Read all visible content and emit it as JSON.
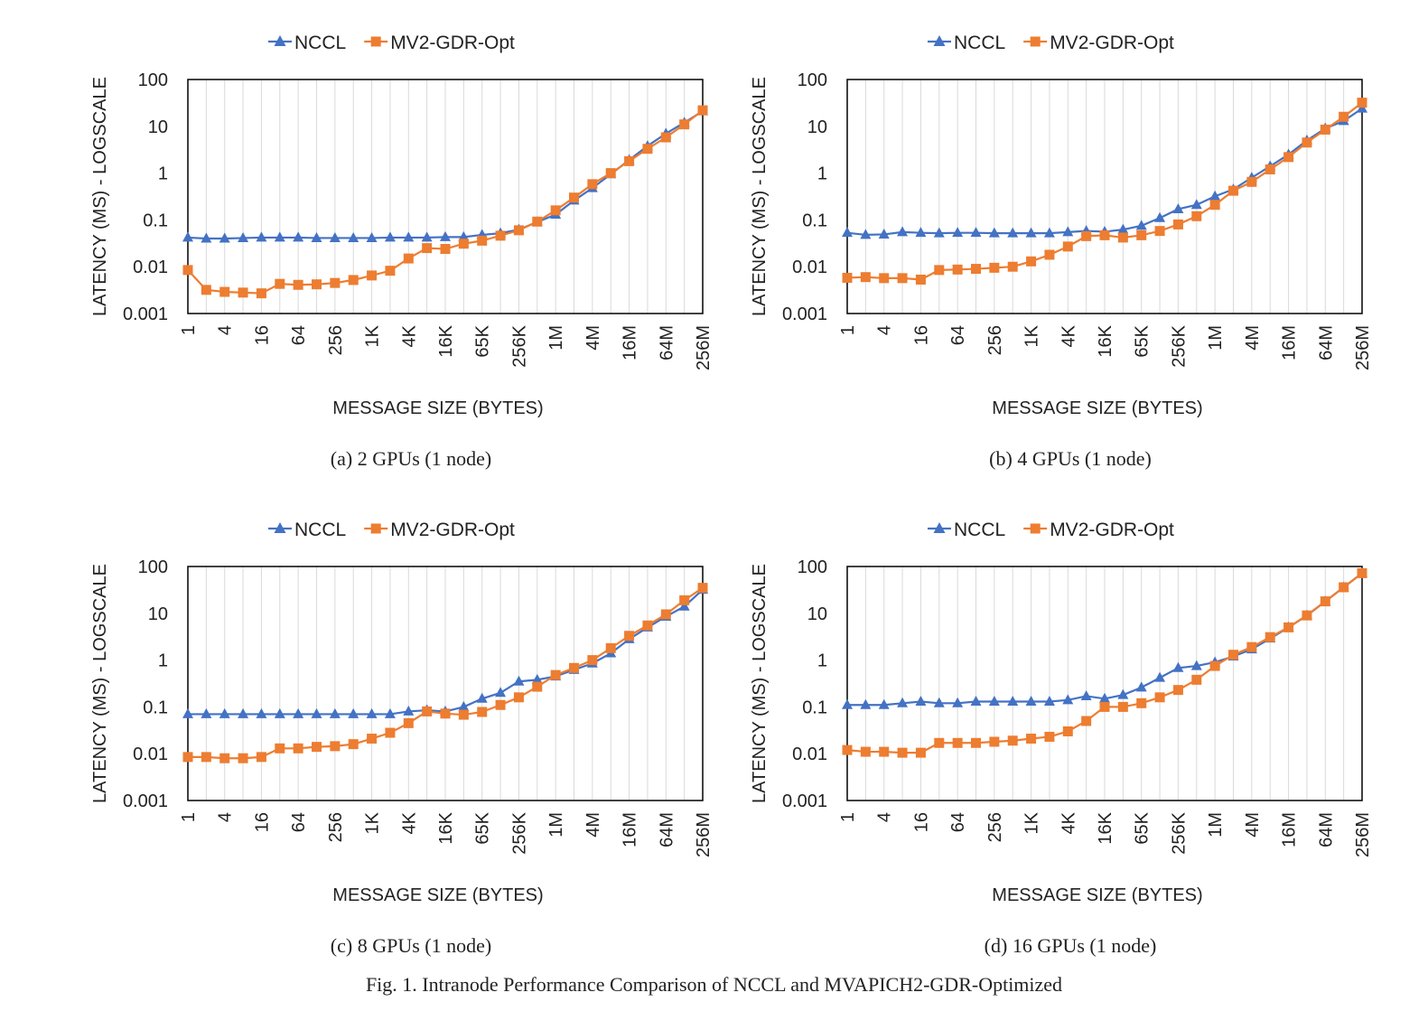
{
  "figure_caption": "Fig. 1.  Intranode Performance Comparison of NCCL and MVAPICH2-GDR-Optimized",
  "colors": {
    "nccl": "#4472C4",
    "mv2": "#ED7D31",
    "grid": "#d9d9d9",
    "axis": "#000000"
  },
  "chart_data": [
    {
      "type": "line",
      "caption": "(a) 2 GPUs (1 node)",
      "xlabel": "MESSAGE SIZE (BYTES)",
      "ylabel": "LATENCY (MS) - LOGSCALE",
      "yscale": "log",
      "ylim": [
        0.001,
        100
      ],
      "yticks": [
        "0.001",
        "0.01",
        "0.1",
        "1",
        "10",
        "100"
      ],
      "legend_position": "top",
      "grid": "vertical",
      "x": [
        "1",
        "2",
        "4",
        "8",
        "16",
        "32",
        "64",
        "128",
        "256",
        "512",
        "1K",
        "2K",
        "4K",
        "8K",
        "16K",
        "32K",
        "65K",
        "128K",
        "256K",
        "512K",
        "1M",
        "2M",
        "4M",
        "8M",
        "16M",
        "32M",
        "64M",
        "128M",
        "256M"
      ],
      "xtick_labels": [
        "1",
        "4",
        "16",
        "64",
        "256",
        "1K",
        "4K",
        "16K",
        "65K",
        "256K",
        "1M",
        "4M",
        "16M",
        "64M",
        "256M"
      ],
      "series": [
        {
          "name": "NCCL",
          "marker": "triangle",
          "values": [
            0.042,
            0.04,
            0.04,
            0.041,
            0.042,
            0.042,
            0.042,
            0.041,
            0.041,
            0.041,
            0.041,
            0.042,
            0.042,
            0.042,
            0.043,
            0.043,
            0.048,
            0.052,
            0.062,
            0.09,
            0.13,
            0.26,
            0.48,
            0.95,
            1.9,
            3.8,
            7.0,
            12,
            21
          ]
        },
        {
          "name": "MV2-GDR-Opt",
          "marker": "square",
          "values": [
            0.0085,
            0.0032,
            0.0029,
            0.0028,
            0.0027,
            0.0043,
            0.0041,
            0.0042,
            0.0045,
            0.0052,
            0.0065,
            0.0082,
            0.015,
            0.025,
            0.024,
            0.031,
            0.036,
            0.046,
            0.06,
            0.092,
            0.16,
            0.3,
            0.58,
            1.0,
            1.8,
            3.3,
            5.8,
            11,
            22
          ]
        }
      ]
    },
    {
      "type": "line",
      "caption": "(b) 4 GPUs (1 node)",
      "xlabel": "MESSAGE SIZE (BYTES)",
      "ylabel": "LATENCY (MS) - LOGSCALE",
      "yscale": "log",
      "ylim": [
        0.001,
        100
      ],
      "yticks": [
        "0.001",
        "0.01",
        "0.1",
        "1",
        "10",
        "100"
      ],
      "legend_position": "top",
      "grid": "vertical",
      "x": [
        "1",
        "2",
        "4",
        "8",
        "16",
        "32",
        "64",
        "128",
        "256",
        "512",
        "1K",
        "2K",
        "4K",
        "8K",
        "16K",
        "32K",
        "65K",
        "128K",
        "256K",
        "512K",
        "1M",
        "2M",
        "4M",
        "8M",
        "16M",
        "32M",
        "64M",
        "128M",
        "256M"
      ],
      "xtick_labels": [
        "1",
        "4",
        "16",
        "64",
        "256",
        "1K",
        "4K",
        "16K",
        "65K",
        "256K",
        "1M",
        "4M",
        "16M",
        "64M",
        "256M"
      ],
      "series": [
        {
          "name": "NCCL",
          "marker": "triangle",
          "values": [
            0.053,
            0.048,
            0.049,
            0.055,
            0.053,
            0.052,
            0.053,
            0.053,
            0.052,
            0.052,
            0.052,
            0.052,
            0.055,
            0.058,
            0.056,
            0.062,
            0.075,
            0.11,
            0.17,
            0.21,
            0.32,
            0.45,
            0.8,
            1.4,
            2.5,
            5.0,
            9.0,
            13,
            24
          ]
        },
        {
          "name": "MV2-GDR-Opt",
          "marker": "square",
          "values": [
            0.0058,
            0.006,
            0.0057,
            0.0057,
            0.0053,
            0.0085,
            0.0087,
            0.009,
            0.0095,
            0.01,
            0.013,
            0.018,
            0.027,
            0.045,
            0.047,
            0.042,
            0.047,
            0.058,
            0.08,
            0.12,
            0.21,
            0.42,
            0.65,
            1.2,
            2.2,
            4.5,
            8.5,
            16,
            32
          ]
        }
      ]
    },
    {
      "type": "line",
      "caption": "(c) 8 GPUs (1 node)",
      "xlabel": "MESSAGE SIZE (BYTES)",
      "ylabel": "LATENCY (MS) - LOGSCALE",
      "yscale": "log",
      "ylim": [
        0.001,
        100
      ],
      "yticks": [
        "0.001",
        "0.01",
        "0.1",
        "1",
        "10",
        "100"
      ],
      "legend_position": "top",
      "grid": "vertical",
      "x": [
        "1",
        "2",
        "4",
        "8",
        "16",
        "32",
        "64",
        "128",
        "256",
        "512",
        "1K",
        "2K",
        "4K",
        "8K",
        "16K",
        "32K",
        "65K",
        "128K",
        "256K",
        "512K",
        "1M",
        "2M",
        "4M",
        "8M",
        "16M",
        "32M",
        "64M",
        "128M",
        "256M"
      ],
      "xtick_labels": [
        "1",
        "4",
        "16",
        "64",
        "256",
        "1K",
        "4K",
        "16K",
        "65K",
        "256K",
        "1M",
        "4M",
        "16M",
        "64M",
        "256M"
      ],
      "series": [
        {
          "name": "NCCL",
          "marker": "triangle",
          "values": [
            0.07,
            0.07,
            0.07,
            0.07,
            0.07,
            0.07,
            0.07,
            0.07,
            0.07,
            0.07,
            0.07,
            0.07,
            0.08,
            0.085,
            0.08,
            0.1,
            0.15,
            0.2,
            0.35,
            0.38,
            0.45,
            0.62,
            0.85,
            1.4,
            2.8,
            5.0,
            8.5,
            14,
            32
          ]
        },
        {
          "name": "MV2-GDR-Opt",
          "marker": "square",
          "values": [
            0.0085,
            0.0085,
            0.008,
            0.008,
            0.0085,
            0.013,
            0.013,
            0.014,
            0.0145,
            0.016,
            0.021,
            0.028,
            0.045,
            0.08,
            0.072,
            0.068,
            0.078,
            0.11,
            0.16,
            0.27,
            0.48,
            0.68,
            1.0,
            1.8,
            3.3,
            5.5,
            9.5,
            19,
            35
          ]
        }
      ]
    },
    {
      "type": "line",
      "caption": "(d) 16 GPUs (1 node)",
      "xlabel": "MESSAGE SIZE (BYTES)",
      "ylabel": "LATENCY (MS) - LOGSCALE",
      "yscale": "log",
      "ylim": [
        0.001,
        100
      ],
      "yticks": [
        "0.001",
        "0.01",
        "0.1",
        "1",
        "10",
        "100"
      ],
      "legend_position": "top",
      "grid": "vertical",
      "x": [
        "1",
        "2",
        "4",
        "8",
        "16",
        "32",
        "64",
        "128",
        "256",
        "512",
        "1K",
        "2K",
        "4K",
        "8K",
        "16K",
        "32K",
        "65K",
        "128K",
        "256K",
        "512K",
        "1M",
        "2M",
        "4M",
        "8M",
        "16M",
        "32M",
        "64M",
        "128M",
        "256M"
      ],
      "xtick_labels": [
        "1",
        "4",
        "16",
        "64",
        "256",
        "1K",
        "4K",
        "16K",
        "65K",
        "256K",
        "1M",
        "4M",
        "16M",
        "64M",
        "256M"
      ],
      "series": [
        {
          "name": "NCCL",
          "marker": "triangle",
          "values": [
            0.11,
            0.11,
            0.11,
            0.12,
            0.13,
            0.12,
            0.12,
            0.13,
            0.13,
            0.13,
            0.13,
            0.13,
            0.14,
            0.17,
            0.15,
            0.18,
            0.26,
            0.42,
            0.68,
            0.75,
            0.9,
            1.2,
            1.7,
            2.9,
            5.0,
            9.0,
            18,
            36,
            72
          ]
        },
        {
          "name": "MV2-GDR-Opt",
          "marker": "square",
          "values": [
            0.012,
            0.011,
            0.011,
            0.0105,
            0.0105,
            0.017,
            0.017,
            0.017,
            0.018,
            0.019,
            0.021,
            0.023,
            0.03,
            0.05,
            0.1,
            0.1,
            0.12,
            0.16,
            0.23,
            0.38,
            0.75,
            1.3,
            1.9,
            3.1,
            5.0,
            9.0,
            18,
            36,
            72
          ]
        }
      ]
    }
  ]
}
